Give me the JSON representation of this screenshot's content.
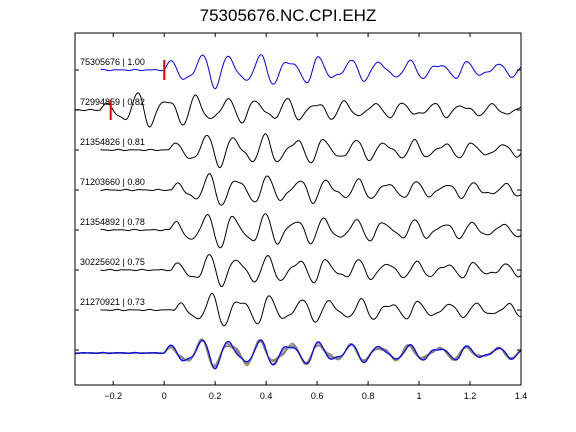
{
  "chart_data": {
    "type": "line",
    "title": "75305676.NC.CPI.EHZ",
    "xlabel": "",
    "ylabel": "",
    "xlim": [
      -0.35,
      1.4
    ],
    "xticks": [
      -0.2,
      0,
      0.2,
      0.4,
      0.6,
      0.8,
      1,
      1.2,
      1.4
    ],
    "xtick_labels": [
      "−0.2",
      "0",
      "0.2",
      "0.4",
      "0.6",
      "0.8",
      "1",
      "1.2",
      "1.4"
    ],
    "grid": false,
    "colors": {
      "reference": "#0000ff",
      "trace": "#000000",
      "stack": "#808080",
      "pick": "#ff0000",
      "stack_accent": "#b5a01e"
    },
    "series": [
      {
        "name": "75305676 | 1.00",
        "event_id": "75305676",
        "cc": "1.00",
        "color": "#0000ff",
        "pick_time": 0.0,
        "onset": 0.0,
        "amp": 1.0,
        "phase": 0.0
      },
      {
        "name": "72994859 | 0.82",
        "event_id": "72994859",
        "cc": "0.82",
        "color": "#000000",
        "pick_time": -0.21,
        "onset": -0.25,
        "amp": 0.95,
        "phase": 1.2
      },
      {
        "name": "21354826 | 0.81",
        "event_id": "21354826",
        "cc": "0.81",
        "color": "#000000",
        "onset": 0.02,
        "amp": 0.95,
        "phase": 0.5
      },
      {
        "name": "71203660 | 0.80",
        "event_id": "71203660",
        "cc": "0.80",
        "color": "#000000",
        "onset": 0.03,
        "amp": 0.9,
        "phase": 0.9
      },
      {
        "name": "21354892 | 0.78",
        "event_id": "21354892",
        "cc": "0.78",
        "color": "#000000",
        "onset": 0.02,
        "amp": 1.0,
        "phase": 0.3
      },
      {
        "name": "30225602 | 0.75",
        "event_id": "30225602",
        "cc": "0.75",
        "color": "#000000",
        "onset": 0.03,
        "amp": 0.9,
        "phase": 0.7
      },
      {
        "name": "21270921 | 0.73",
        "event_id": "21270921",
        "cc": "0.73",
        "color": "#000000",
        "onset": 0.04,
        "amp": 0.9,
        "phase": 1.1
      }
    ]
  }
}
